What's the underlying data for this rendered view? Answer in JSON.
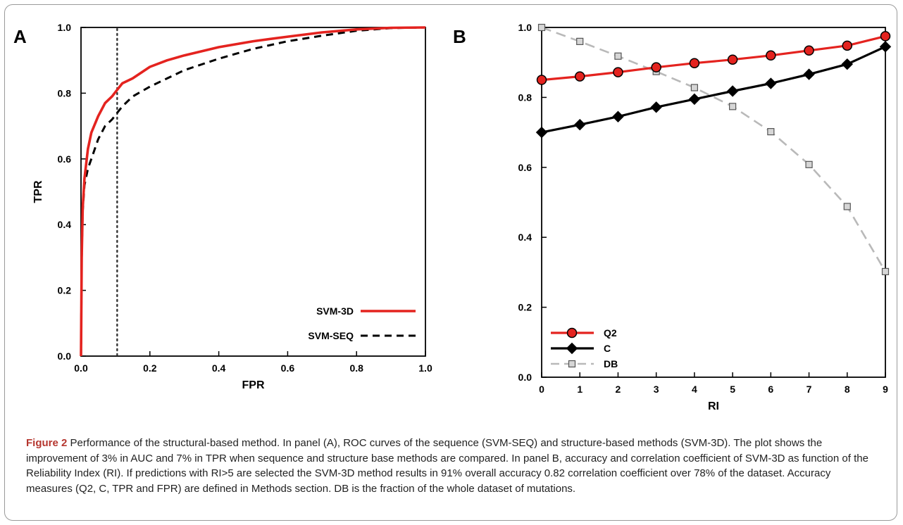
{
  "panels": {
    "a_letter": "A",
    "b_letter": "B"
  },
  "caption": {
    "figure_number": "Figure 2",
    "text": "Performance of the structural-based method. In panel (A), ROC curves of the sequence (SVM-SEQ) and structure-based methods (SVM-3D). The plot shows the improvement of 3% in AUC and 7% in TPR when sequence and structure base methods are compared. In panel B, accuracy and correlation coefficient of SVM-3D as function of the Reliability Index (RI). If predictions with RI>5 are selected the SVM-3D method results in 91% overall accuracy 0.82 correlation coefficient over 78% of the dataset. Accuracy measures (Q2, C, TPR and FPR) are defined in Methods section. DB is the fraction of the whole dataset of mutations."
  },
  "colors": {
    "red": "#e4231f",
    "black": "#000000",
    "gray": "#b9b9b9",
    "caption_accent": "#b5362f"
  },
  "chart_data": [
    {
      "type": "line",
      "title": "",
      "panel": "A",
      "xlabel": "FPR",
      "ylabel": "TPR",
      "xlim": [
        0,
        1
      ],
      "ylim": [
        0,
        1
      ],
      "xticks": [
        "0.0",
        "0.2",
        "0.4",
        "0.6",
        "0.8",
        "1.0"
      ],
      "yticks": [
        "0.0",
        "0.2",
        "0.4",
        "0.6",
        "0.8",
        "1.0"
      ],
      "grid": false,
      "legend_position": "bottom-right",
      "reference_line": {
        "x": 0.105,
        "style": "dotted"
      },
      "series": [
        {
          "name": "SVM-3D",
          "color": "#e4231f",
          "style": "solid",
          "x": [
            0,
            0.002,
            0.005,
            0.01,
            0.02,
            0.03,
            0.05,
            0.07,
            0.09,
            0.105,
            0.12,
            0.15,
            0.2,
            0.25,
            0.3,
            0.4,
            0.5,
            0.6,
            0.7,
            0.8,
            0.9,
            1.0
          ],
          "y": [
            0,
            0.3,
            0.45,
            0.54,
            0.63,
            0.68,
            0.73,
            0.77,
            0.79,
            0.81,
            0.83,
            0.845,
            0.88,
            0.9,
            0.915,
            0.94,
            0.958,
            0.972,
            0.985,
            0.994,
            0.999,
            1.0
          ]
        },
        {
          "name": "SVM-SEQ",
          "color": "#000000",
          "style": "dashed",
          "x": [
            0,
            0.002,
            0.005,
            0.01,
            0.02,
            0.03,
            0.05,
            0.07,
            0.09,
            0.105,
            0.12,
            0.15,
            0.2,
            0.25,
            0.3,
            0.4,
            0.5,
            0.6,
            0.7,
            0.8,
            0.9,
            1.0
          ],
          "y": [
            0,
            0.3,
            0.44,
            0.52,
            0.57,
            0.6,
            0.66,
            0.7,
            0.72,
            0.74,
            0.76,
            0.79,
            0.82,
            0.845,
            0.87,
            0.905,
            0.935,
            0.958,
            0.975,
            0.99,
            0.998,
            1.0
          ]
        }
      ]
    },
    {
      "type": "line",
      "title": "",
      "panel": "B",
      "xlabel": "RI",
      "ylabel": "",
      "xlim": [
        0,
        9
      ],
      "ylim": [
        0,
        1
      ],
      "xticks": [
        "0",
        "1",
        "2",
        "3",
        "4",
        "5",
        "6",
        "7",
        "8",
        "9"
      ],
      "yticks": [
        "0.0",
        "0.2",
        "0.4",
        "0.6",
        "0.8",
        "1.0"
      ],
      "grid": false,
      "legend_position": "bottom-left",
      "x": [
        0,
        1,
        2,
        3,
        4,
        5,
        6,
        7,
        8,
        9
      ],
      "series": [
        {
          "name": "Q2",
          "color": "#e4231f",
          "style": "solid",
          "marker": "circle",
          "values": [
            0.85,
            0.86,
            0.872,
            0.886,
            0.898,
            0.908,
            0.92,
            0.934,
            0.948,
            0.975
          ]
        },
        {
          "name": "C",
          "color": "#000000",
          "style": "solid",
          "marker": "diamond",
          "values": [
            0.7,
            0.722,
            0.745,
            0.772,
            0.795,
            0.818,
            0.84,
            0.866,
            0.895,
            0.945
          ]
        },
        {
          "name": "DB",
          "color": "#b9b9b9",
          "style": "dashed",
          "marker": "square",
          "values": [
            1.0,
            0.96,
            0.918,
            0.874,
            0.828,
            0.774,
            0.702,
            0.608,
            0.488,
            0.302
          ]
        }
      ]
    }
  ]
}
